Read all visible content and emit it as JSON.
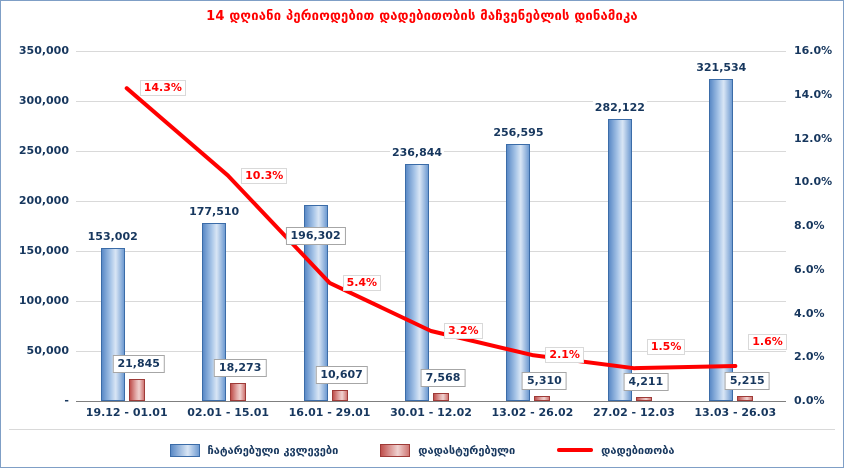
{
  "chart_data": {
    "type": "bar+line",
    "title": "14 დღიანი პერიოდებით დადებითობის მაჩვენებლის დინამიკა",
    "categories": [
      "19.12 - 01.01",
      "02.01 - 15.01",
      "16.01 - 29.01",
      "30.01 - 12.02",
      "13.02 - 26.02",
      "27.02 - 12.03",
      "13.03 - 26.03"
    ],
    "series": [
      {
        "name": "ჩატარებული კვლევები",
        "type": "bar",
        "axis": "left",
        "values": [
          153002,
          177510,
          196302,
          236844,
          256595,
          282122,
          321534
        ],
        "labels": [
          "153,002",
          "177,510",
          "196,302",
          "236,844",
          "256,595",
          "282,122",
          "321,534"
        ],
        "label_dy": [
          0,
          0,
          40,
          0,
          0,
          0,
          0
        ]
      },
      {
        "name": "დადასტურებული",
        "type": "bar",
        "axis": "left",
        "values": [
          21845,
          18273,
          10607,
          7568,
          5310,
          4211,
          5215
        ],
        "labels": [
          "21,845",
          "18,273",
          "10,607",
          "7,568",
          "5,310",
          "4,211",
          "5,215"
        ]
      },
      {
        "name": "დადებითობა",
        "type": "line",
        "axis": "right",
        "values": [
          14.3,
          10.3,
          5.4,
          3.2,
          2.1,
          1.5,
          1.6
        ],
        "labels": [
          "14.3%",
          "10.3%",
          "5.4%",
          "3.2%",
          "2.1%",
          "1.5%",
          "1.6%"
        ],
        "label_dy": [
          0,
          0,
          0,
          0,
          0,
          -21,
          -24
        ]
      }
    ],
    "left_axis": {
      "min": 0,
      "max": 350000,
      "step": 50000,
      "tick_labels": [
        "350,000",
        "300,000",
        "250,000",
        "200,000",
        "150,000",
        "100,000",
        "50,000",
        "-"
      ]
    },
    "right_axis": {
      "min": 0,
      "max": 16,
      "step": 2,
      "tick_labels": [
        "16.0%",
        "14.0%",
        "12.0%",
        "10.0%",
        "8.0%",
        "6.0%",
        "4.0%",
        "2.0%",
        "0.0%"
      ]
    },
    "legend_position": "bottom",
    "grid": true,
    "colors": {
      "title": "#FF0000",
      "axis_text": "#17375E",
      "bar_blue": "#95B3D7",
      "bar_blue_border": "#3B6CA8",
      "bar_red": "#D99694",
      "bar_red_border": "#9E3B38",
      "line": "#FF0000",
      "gridline": "#D9D9D9"
    }
  }
}
